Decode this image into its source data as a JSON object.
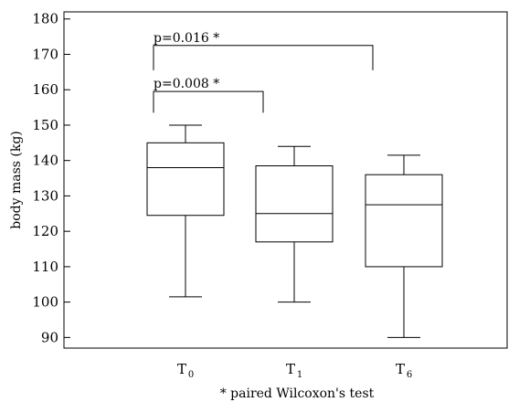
{
  "chart_data": {
    "type": "box",
    "title": "",
    "ylabel": "body mass (kg)",
    "xlabel": "",
    "ylim": [
      87,
      182
    ],
    "yticks": [
      90,
      100,
      110,
      120,
      130,
      140,
      150,
      160,
      170,
      180
    ],
    "grid": false,
    "categories": [
      {
        "main": "T",
        "sub": "0"
      },
      {
        "main": "T",
        "sub": "1"
      },
      {
        "main": "T",
        "sub": "6"
      }
    ],
    "boxes": [
      {
        "min": 101.5,
        "q1": 124.5,
        "median": 138,
        "q3": 145,
        "max": 150
      },
      {
        "min": 100,
        "q1": 117,
        "median": 125,
        "q3": 138.5,
        "max": 144
      },
      {
        "min": 90,
        "q1": 110,
        "median": 127.5,
        "q3": 136,
        "max": 141.5
      }
    ],
    "comparisons": [
      {
        "from": 0,
        "to": 1,
        "y": 159.5,
        "drop": 153.5,
        "label": "p=0.008 *"
      },
      {
        "from": 0,
        "to": 2,
        "y": 172.5,
        "drop": 165.5,
        "label": "p=0.016 *"
      }
    ],
    "footnote": "* paired Wilcoxon's  test"
  }
}
